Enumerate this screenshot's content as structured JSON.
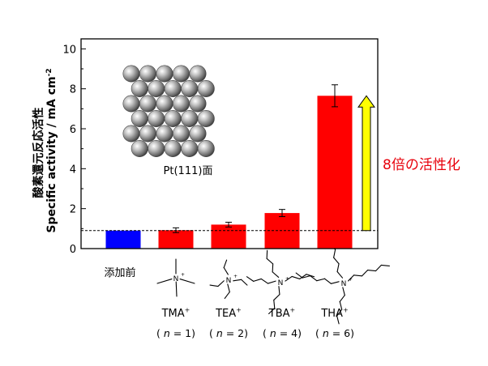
{
  "chart_data": {
    "type": "bar",
    "ylabel_ja": "酸素還元反応活性",
    "ylabel_en": "Specific activity / mA cm",
    "ylabel_sup": "-2",
    "ylim": [
      0,
      10.5
    ],
    "yticks": [
      0,
      2,
      4,
      6,
      8,
      10
    ],
    "baseline": 0.9,
    "categories": [
      "添加前",
      "TMA",
      "TEA",
      "TBA",
      "THA"
    ],
    "category_sup": [
      "",
      "+",
      "+",
      "+",
      "+"
    ],
    "n_values": [
      "",
      "1",
      "2",
      "4",
      "6"
    ],
    "values": [
      0.9,
      0.92,
      1.2,
      1.78,
      7.65
    ],
    "errors": [
      0.03,
      0.12,
      0.12,
      0.18,
      0.55
    ],
    "bar_colors": [
      "#0000ff",
      "#ff0000",
      "#ff0000",
      "#ff0000",
      "#ff0000"
    ],
    "inset_label": "Pt(111)面",
    "annotation": "8倍の活性化",
    "annotation_color": "#e8000b",
    "arrow_color": "#ffff00"
  }
}
